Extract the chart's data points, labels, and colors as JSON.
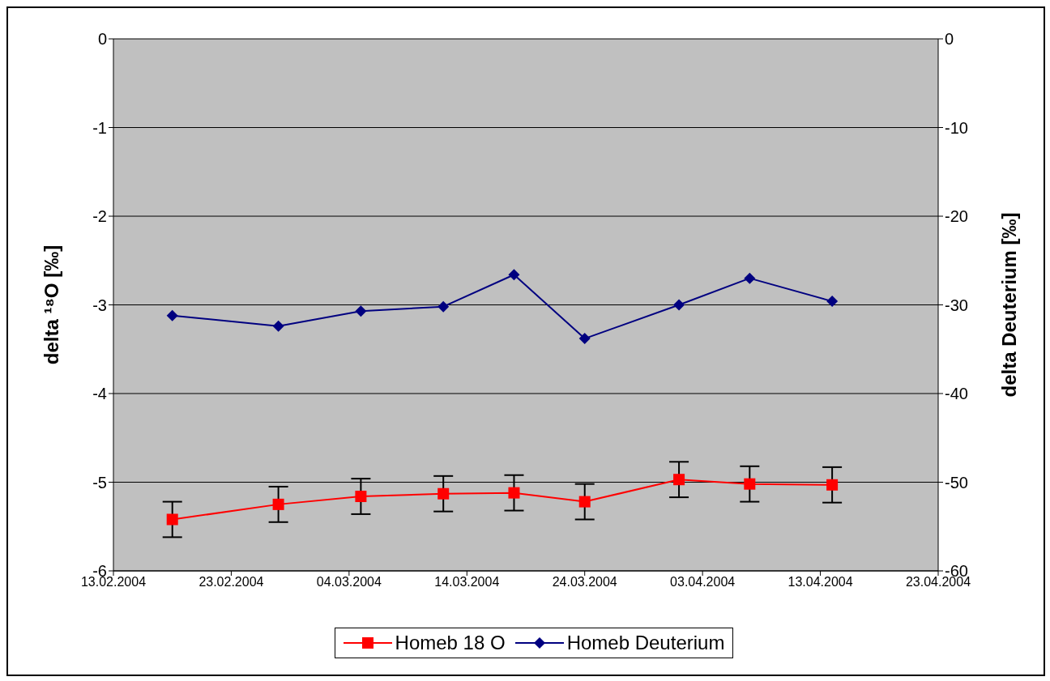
{
  "chart_data": {
    "type": "line",
    "ylabel": "delta ¹⁸O [‰]",
    "y2label": "delta Deuterium [‰]",
    "x": [
      "2004-02-18",
      "2004-02-27",
      "2004-03-05",
      "2004-03-12",
      "2004-03-18",
      "2004-03-24",
      "2004-04-01",
      "2004-04-07",
      "2004-04-14"
    ],
    "series": [
      {
        "name": "Homeb 18 O",
        "color": "#ff0000",
        "marker": "square",
        "values": [
          -5.42,
          -5.25,
          -5.16,
          -5.13,
          -5.12,
          -5.22,
          -4.97,
          -5.02,
          -5.03
        ],
        "errors": [
          0.2,
          0.2,
          0.2,
          0.2,
          0.2,
          0.2,
          0.2,
          0.2,
          0.2
        ]
      },
      {
        "name": "Homeb Deuterium",
        "color": "#000080",
        "marker": "diamond",
        "axis": "y2",
        "values": [
          -31.2,
          -32.4,
          -30.7,
          -30.2,
          -26.6,
          -33.8,
          -30.0,
          -27.0,
          -29.6
        ]
      }
    ],
    "xlim": [
      "2004-02-13",
      "2004-04-23"
    ],
    "xticks": [
      {
        "value": "2004-02-13",
        "label": "13.02.2004"
      },
      {
        "value": "2004-02-23",
        "label": "23.02.2004"
      },
      {
        "value": "2004-03-04",
        "label": "04.03.2004"
      },
      {
        "value": "2004-03-14",
        "label": "14.03.2004"
      },
      {
        "value": "2004-03-24",
        "label": "24.03.2004"
      },
      {
        "value": "2004-04-03",
        "label": "03.04.2004"
      },
      {
        "value": "2004-04-13",
        "label": "13.04.2004"
      },
      {
        "value": "2004-04-23",
        "label": "23.04.2004"
      }
    ],
    "ylim": [
      -6,
      0
    ],
    "yticks": [
      -6,
      -5,
      -4,
      -3,
      -2,
      -1,
      0
    ],
    "y2lim": [
      -60,
      0
    ],
    "y2ticks": [
      -60,
      -50,
      -40,
      -30,
      -20,
      -10,
      0
    ],
    "grid": "y",
    "legend": "bottom",
    "line_style": "solid"
  }
}
